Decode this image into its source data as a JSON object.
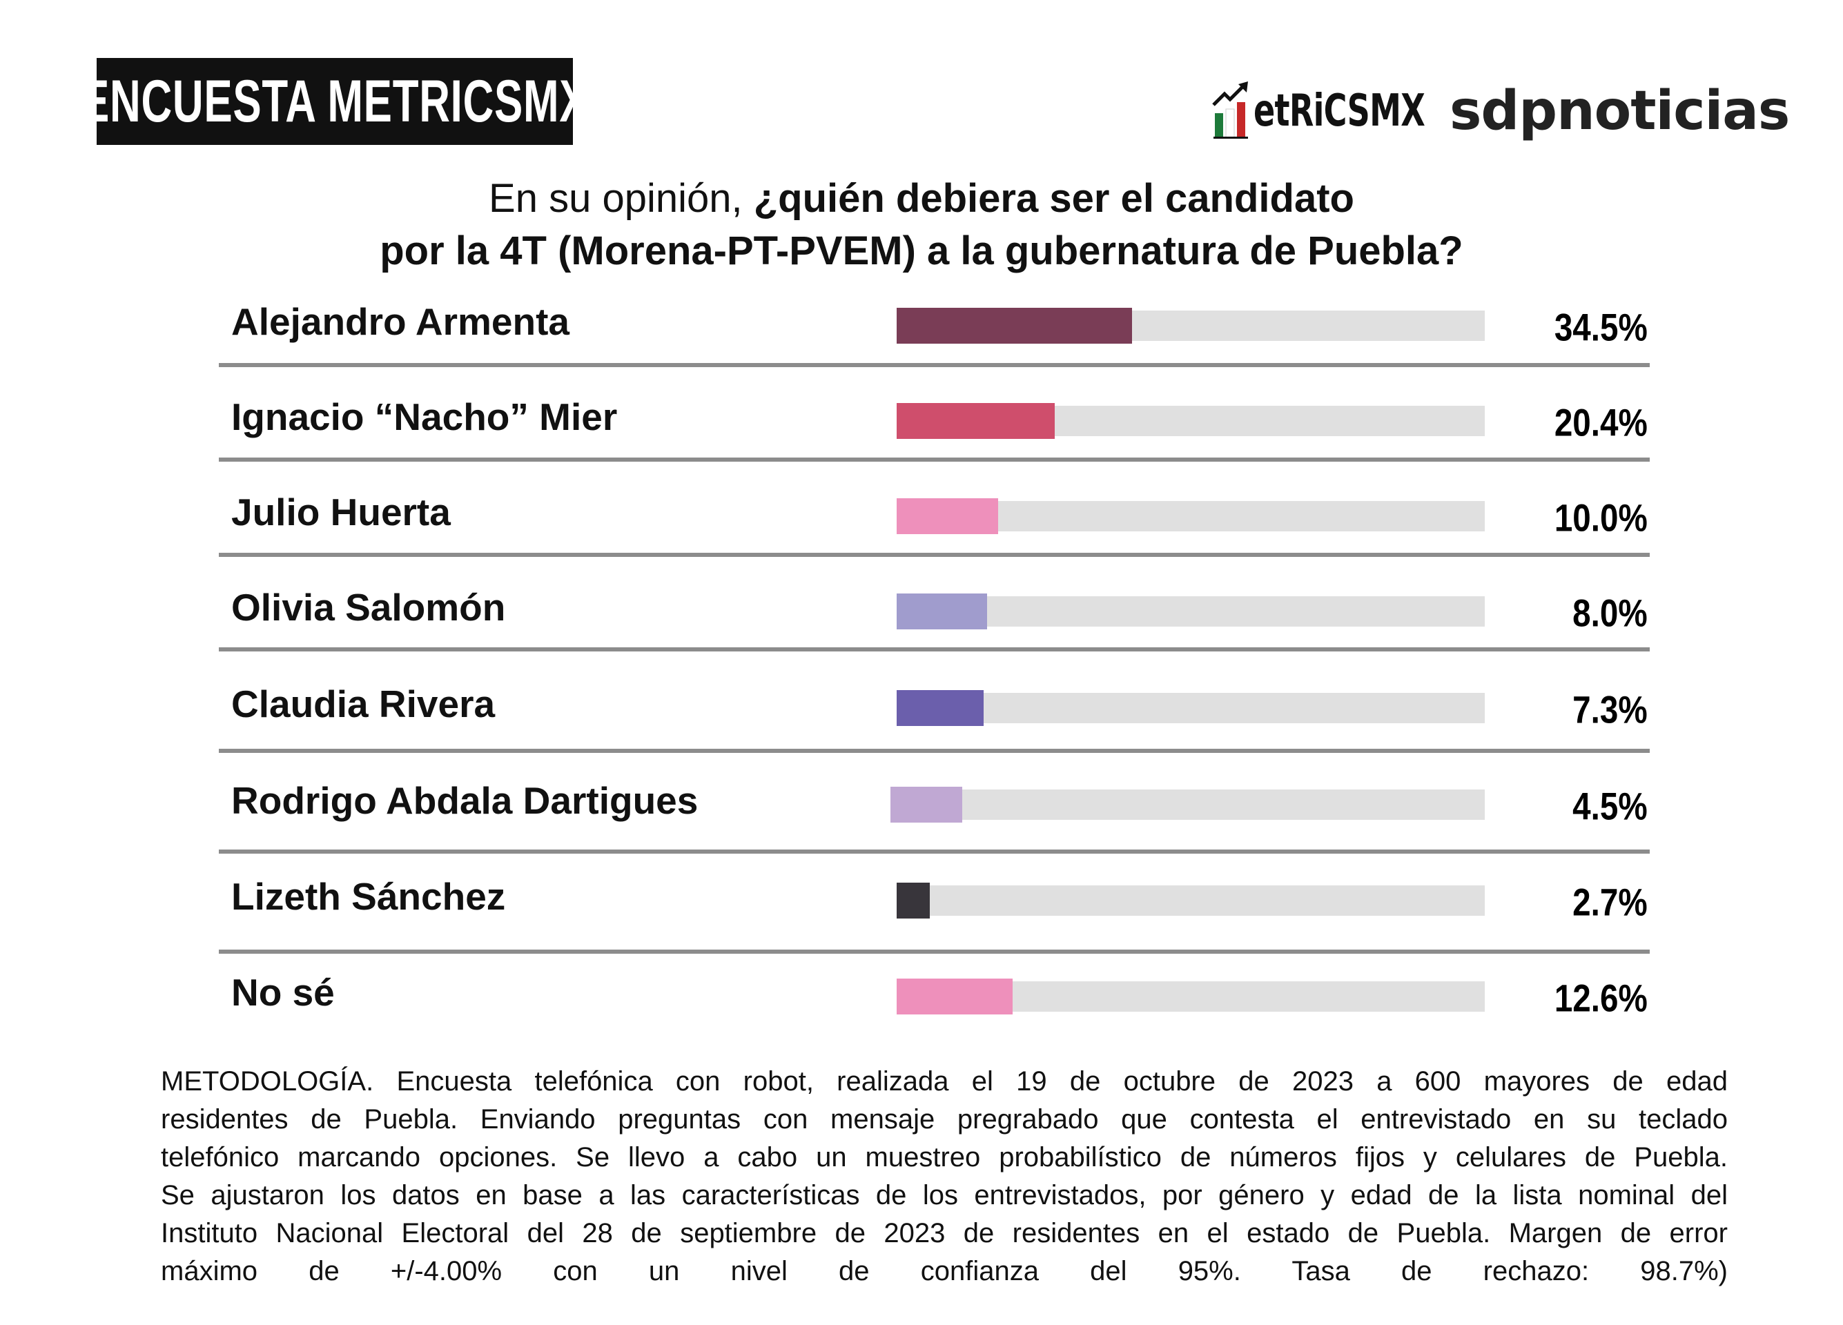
{
  "header": {
    "badge": "ENCUESTA METRICSMX",
    "logos": [
      {
        "name": "MetricsMX",
        "text": "etRiCSMX"
      },
      {
        "name": "sdpnoticias",
        "text": "sdpnoticias"
      }
    ]
  },
  "question": {
    "plain": "En su opinión, ",
    "bold1": "¿quién debiera ser el candidato",
    "bold2": "por la 4T (Morena-PT-PVEM) a la gubernatura de Puebla?"
  },
  "chart_data": {
    "type": "bar",
    "orientation": "horizontal",
    "title": "En su opinión, ¿quién debiera ser el candidato por la 4T (Morena-PT-PVEM) a la gubernatura de Puebla?",
    "unit": "%",
    "track_color": "#e0e0e0",
    "categories": [
      "Alejandro Armenta",
      "Ignacio “Nacho” Mier",
      "Julio Huerta",
      "Olivia Salomón",
      "Claudia Rivera",
      "Rodrigo Abdala Dartigues",
      "Lizeth Sánchez",
      "No sé"
    ],
    "values": [
      34.5,
      20.4,
      10.0,
      8.0,
      7.3,
      4.5,
      2.7,
      12.6
    ],
    "labels": [
      "34.5%",
      "20.4%",
      "10.0%",
      "8.0%",
      "7.3%",
      "4.5%",
      "2.7%",
      "12.6%"
    ],
    "colors": [
      "#7a3d56",
      "#cf4e6c",
      "#ee90bb",
      "#a09ccd",
      "#6b5fac",
      "#c0a8d3",
      "#38353b",
      "#ee90bb"
    ]
  },
  "methodology": {
    "lines": [
      "METODOLOGÍA. Encuesta telefónica con robot, realizada el 19 de octubre de 2023 a 600 mayores de edad",
      "residentes de Puebla. Enviando preguntas con mensaje pregrabado que contesta el entrevistado en su teclado",
      "telefónico marcando opciones. Se llevo a cabo un muestreo probabilístico de números fijos y celulares de Puebla.",
      "Se ajustaron los datos en base a las características de los entrevistados, por género y edad de la lista nominal del",
      "Instituto Nacional Electoral del 28 de septiembre de 2023 de residentes en el estado de Puebla. Margen de error",
      "máximo de +/-4.00% con un nivel de confianza del 95%. Tasa de rechazo: 98.7%)"
    ]
  }
}
